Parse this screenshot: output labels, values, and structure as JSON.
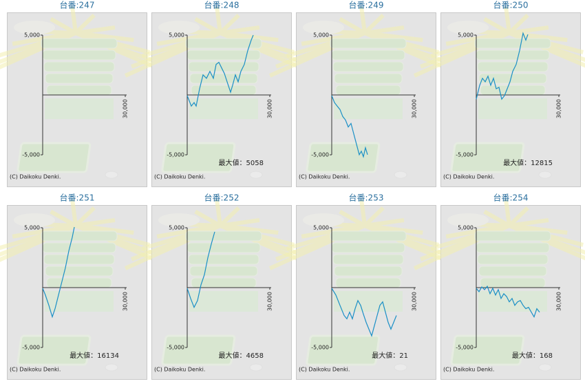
{
  "chart_data": [
    {
      "type": "line",
      "title": "台番:247",
      "copyright": "(C) Daikoku Denki.",
      "xlim": [
        0,
        30000
      ],
      "ylim": [
        -5000,
        5000
      ],
      "xticks": [
        {
          "value": 30000,
          "label": "30,000"
        }
      ],
      "yticks": [
        {
          "value": 5000,
          "label": "5,000"
        },
        {
          "value": -5000,
          "label": "-5,000"
        }
      ],
      "x": [],
      "series": [
        {
          "color": "#1a8fc6",
          "values": []
        }
      ]
    },
    {
      "type": "line",
      "title": "台番:248",
      "annotation": "最大値：5058",
      "copyright": "(C) Daikoku Denki.",
      "xlim": [
        0,
        30000
      ],
      "ylim": [
        -5000,
        5000
      ],
      "xticks": [
        {
          "value": 30000,
          "label": "30,000"
        }
      ],
      "yticks": [
        {
          "value": 5000,
          "label": "5,000"
        },
        {
          "value": -5000,
          "label": "-5,000"
        }
      ],
      "x": [
        0,
        1500,
        2500,
        3250,
        4500,
        5750,
        7000,
        8250,
        9500,
        10500,
        11500,
        12500,
        13500,
        14500,
        15750,
        16500,
        17500,
        18500,
        19500,
        20750,
        22000,
        23250,
        24000
      ],
      "series": [
        {
          "color": "#1a8fc6",
          "values": [
            -60,
            -930,
            -640,
            -930,
            520,
            1680,
            1390,
            1970,
            1390,
            2550,
            2730,
            2260,
            1800,
            1100,
            230,
            810,
            1680,
            1100,
            1970,
            2550,
            3710,
            4580,
            5000
          ]
        }
      ]
    },
    {
      "type": "line",
      "title": "台番:249",
      "copyright": "(C) Daikoku Denki.",
      "xlim": [
        0,
        30000
      ],
      "ylim": [
        -5000,
        5000
      ],
      "xticks": [
        {
          "value": 30000,
          "label": "30,000"
        }
      ],
      "yticks": [
        {
          "value": 5000,
          "label": "5,000"
        },
        {
          "value": -5000,
          "label": "-5,000"
        }
      ],
      "x": [
        0,
        1000,
        2000,
        3000,
        4000,
        5000,
        6000,
        7000,
        8000,
        9000,
        10000,
        10750,
        11500,
        12250,
        13000
      ],
      "series": [
        {
          "color": "#1a8fc6",
          "values": [
            -60,
            -640,
            -930,
            -1220,
            -1800,
            -2090,
            -2670,
            -2380,
            -3250,
            -4120,
            -4990,
            -4700,
            -5160,
            -4410,
            -4990
          ]
        }
      ]
    },
    {
      "type": "line",
      "title": "台番:250",
      "annotation": "最大値：12815",
      "copyright": "(C) Daikoku Denki.",
      "xlim": [
        0,
        30000
      ],
      "ylim": [
        -5000,
        5000
      ],
      "xticks": [
        {
          "value": 30000,
          "label": "30,000"
        }
      ],
      "yticks": [
        {
          "value": 5000,
          "label": "5,000"
        },
        {
          "value": -5000,
          "label": "-5,000"
        }
      ],
      "x": [
        0,
        1250,
        2250,
        3250,
        4250,
        5250,
        6250,
        7250,
        8250,
        9250,
        10250,
        11250,
        12250,
        13250,
        14500,
        15750,
        17000,
        18000,
        18750
      ],
      "series": [
        {
          "color": "#1a8fc6",
          "values": [
            -350,
            810,
            1390,
            1100,
            1570,
            810,
            1390,
            520,
            640,
            -350,
            -60,
            520,
            1100,
            1970,
            2550,
            3710,
            5160,
            4580,
            5050
          ]
        }
      ]
    },
    {
      "type": "line",
      "title": "台番:251",
      "annotation": "最大値：16134",
      "copyright": "(C) Daikoku Denki.",
      "xlim": [
        0,
        30000
      ],
      "ylim": [
        -5000,
        5000
      ],
      "xticks": [
        {
          "value": 30000,
          "label": "30,000"
        }
      ],
      "yticks": [
        {
          "value": 5000,
          "label": "5,000"
        },
        {
          "value": -5000,
          "label": "-5,000"
        }
      ],
      "x": [
        0,
        1000,
        2250,
        3500,
        4500,
        5750,
        7000,
        8250,
        9500,
        10750,
        11500
      ],
      "series": [
        {
          "color": "#1a8fc6",
          "values": [
            -60,
            -630,
            -1480,
            -2440,
            -1760,
            -620,
            510,
            1650,
            3070,
            4200,
            5060
          ]
        }
      ]
    },
    {
      "type": "line",
      "title": "台番:252",
      "annotation": "最大値：4658",
      "copyright": "(C) Daikoku Denki.",
      "xlim": [
        0,
        30000
      ],
      "ylim": [
        -5000,
        5000
      ],
      "xticks": [
        {
          "value": 30000,
          "label": "30,000"
        }
      ],
      "yticks": [
        {
          "value": 5000,
          "label": "5,000"
        },
        {
          "value": -5000,
          "label": "-5,000"
        }
      ],
      "x": [
        0,
        1250,
        2500,
        3750,
        5000,
        6250,
        7500,
        8750,
        10000
      ],
      "series": [
        {
          "color": "#1a8fc6",
          "values": [
            -60,
            -910,
            -1650,
            -1080,
            230,
            1080,
            2500,
            3640,
            4660
          ]
        }
      ]
    },
    {
      "type": "line",
      "title": "台番:253",
      "annotation": "最大値：21",
      "copyright": "(C) Daikoku Denki.",
      "xlim": [
        0,
        30000
      ],
      "ylim": [
        -5000,
        5000
      ],
      "xticks": [
        {
          "value": 30000,
          "label": "30,000"
        }
      ],
      "yticks": [
        {
          "value": 5000,
          "label": "5,000"
        },
        {
          "value": -5000,
          "label": "-5,000"
        }
      ],
      "x": [
        0,
        1500,
        3000,
        4500,
        5500,
        6500,
        7500,
        8500,
        9500,
        10500,
        11500,
        12500,
        13500,
        14500,
        15500,
        16500,
        17500,
        18500,
        19500,
        20500,
        21500,
        22500,
        23500
      ],
      "series": [
        {
          "color": "#1a8fc6",
          "values": [
            -60,
            -620,
            -1480,
            -2330,
            -2610,
            -2050,
            -2610,
            -1760,
            -1080,
            -1480,
            -2220,
            -2900,
            -3470,
            -4030,
            -3180,
            -2330,
            -1480,
            -1190,
            -2050,
            -2900,
            -3470,
            -2900,
            -2330
          ]
        }
      ]
    },
    {
      "type": "line",
      "title": "台番:254",
      "annotation": "最大値：168",
      "copyright": "(C) Daikoku Denki.",
      "xlim": [
        0,
        30000
      ],
      "ylim": [
        -5000,
        5000
      ],
      "xticks": [
        {
          "value": 30000,
          "label": "30,000"
        }
      ],
      "yticks": [
        {
          "value": 5000,
          "label": "5,000"
        },
        {
          "value": -5000,
          "label": "-5,000"
        }
      ],
      "x": [
        0,
        1000,
        2000,
        3000,
        4000,
        5000,
        6000,
        7000,
        8000,
        9000,
        10000,
        11000,
        12000,
        13000,
        14000,
        15000,
        16000,
        17000,
        18000,
        19000,
        20000,
        21000,
        22000,
        23000
      ],
      "series": [
        {
          "color": "#1a8fc6",
          "values": [
            -60,
            -340,
            60,
            -170,
            110,
            -510,
            -60,
            -620,
            -170,
            -910,
            -510,
            -740,
            -1190,
            -910,
            -1480,
            -1190,
            -1080,
            -1480,
            -1760,
            -1650,
            -2050,
            -2440,
            -1760,
            -2050
          ]
        }
      ]
    }
  ]
}
